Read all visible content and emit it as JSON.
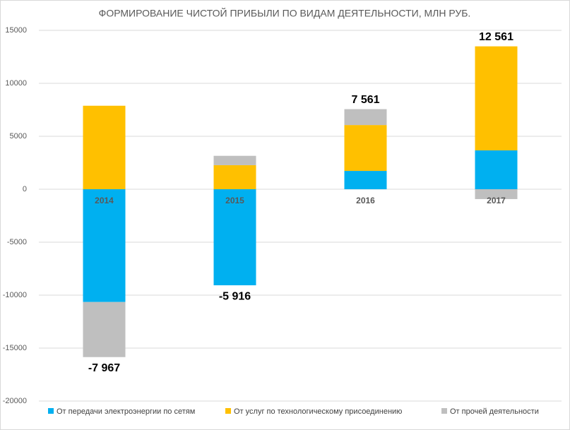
{
  "chart_data": {
    "type": "bar",
    "stacked": true,
    "title": "ФОРМИРОВАНИЕ ЧИСТОЙ ПРИБЫЛИ ПО ВИДАМ ДЕЯТЕЛЬНОСТИ, МЛН РУБ.",
    "categories": [
      "2014",
      "2015",
      "2016",
      "2017"
    ],
    "series": [
      {
        "name": "От передачи электроэнергии по сетям",
        "color": "#00b0f0",
        "values": [
          -10650,
          -9070,
          1730,
          3670
        ]
      },
      {
        "name": "От услуг по технологическому присоединению",
        "color": "#ffc000",
        "values": [
          7883,
          2270,
          4330,
          9821
        ]
      },
      {
        "name": "От прочей деятельности",
        "color": "#bfbfbf",
        "values": [
          -5200,
          884,
          1501,
          -930
        ]
      }
    ],
    "totals": [
      -7967,
      -5916,
      7561,
      12561
    ],
    "total_labels": [
      "-7 967",
      "-5 916",
      "7 561",
      "12 561"
    ],
    "ylim": [
      -20000,
      15000
    ],
    "yticks": [
      -20000,
      -15000,
      -10000,
      -5000,
      0,
      5000,
      10000,
      15000
    ],
    "grid": true,
    "legend": "bottom"
  }
}
